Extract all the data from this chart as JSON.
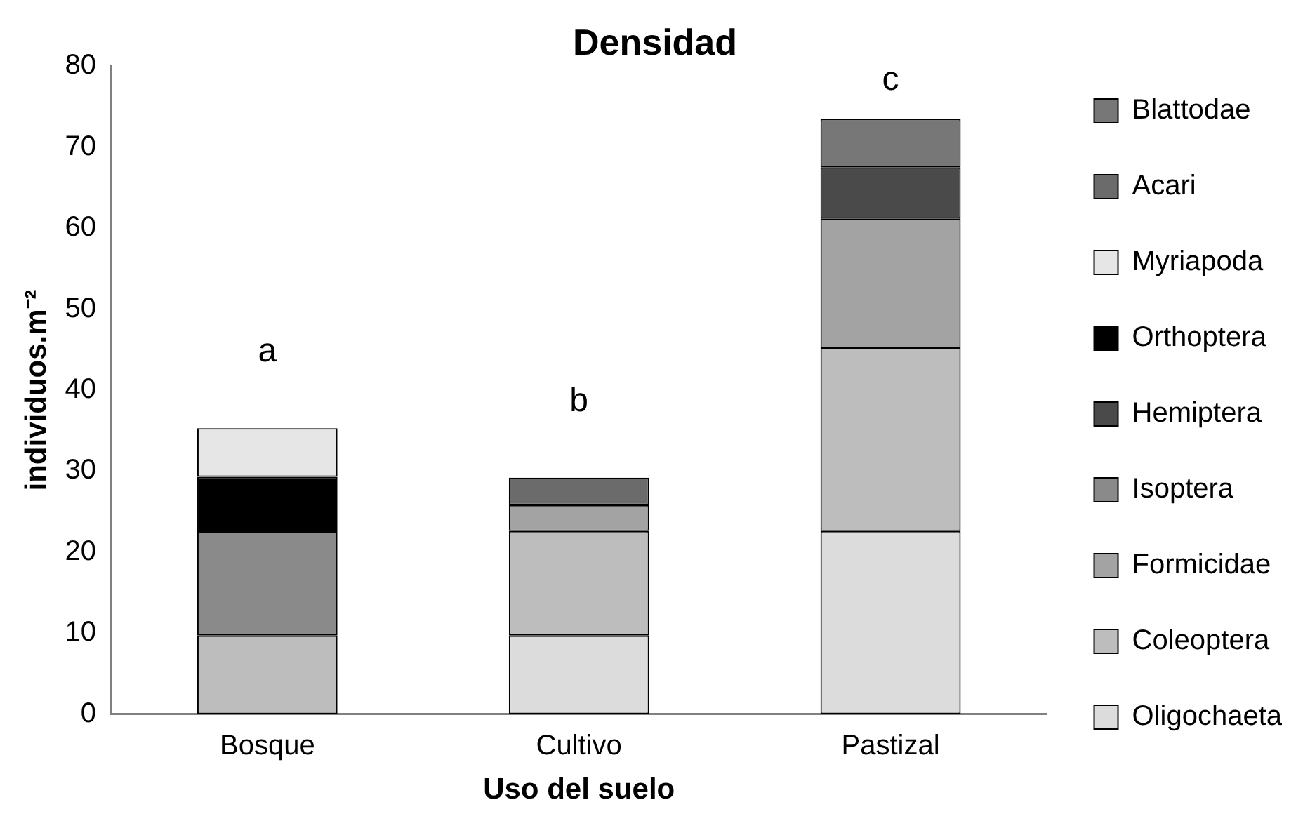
{
  "chart_data": {
    "type": "bar",
    "title": "Densidad",
    "xlabel": "Uso del suelo",
    "ylabel": "individuos.m⁻²",
    "categories": [
      "Bosque",
      "Cultivo",
      "Pastizal"
    ],
    "stacked": true,
    "series": [
      {
        "name": "Oligochaeta",
        "color": "#dcdcdc",
        "values": [
          null,
          9.7,
          22.6
        ]
      },
      {
        "name": "Coleoptera",
        "color": "#bdbdbd",
        "values": [
          9.7,
          12.9,
          22.6
        ]
      },
      {
        "name": "Formicidae",
        "color": "#a3a3a3",
        "values": [
          null,
          3.2,
          16
        ]
      },
      {
        "name": "Isoptera",
        "color": "#8a8a8a",
        "values": [
          12.8,
          null,
          null
        ]
      },
      {
        "name": "Hemiptera",
        "color": "#4a4a4a",
        "values": [
          null,
          null,
          6.3
        ]
      },
      {
        "name": "Orthoptera",
        "color": "#000000",
        "values": [
          6.8,
          null,
          null
        ]
      },
      {
        "name": "Myriapoda",
        "color": "#e6e6e6",
        "values": [
          6.0,
          null,
          null
        ]
      },
      {
        "name": "Acari",
        "color": "#6b6b6b",
        "values": [
          null,
          3.4,
          null
        ]
      },
      {
        "name": "Blattodae",
        "color": "#777777",
        "values": [
          null,
          null,
          6.0
        ]
      }
    ],
    "ylim": [
      0,
      80
    ],
    "yticks": [
      0,
      10,
      20,
      30,
      40,
      50,
      60,
      70,
      80
    ],
    "grid": false,
    "legend": "right",
    "annotations": [
      "a",
      "b",
      "c"
    ]
  }
}
